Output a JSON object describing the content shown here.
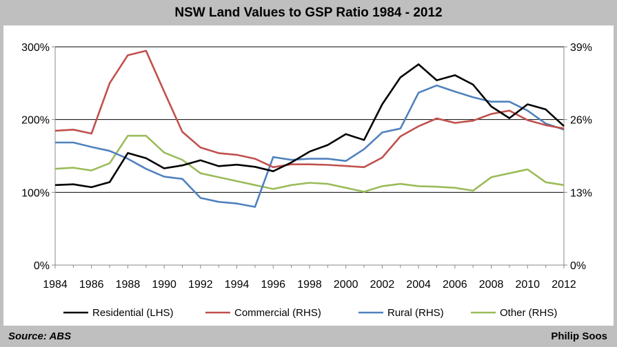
{
  "header": {
    "title": "NSW Land Values to GSP Ratio 1984 - 2012"
  },
  "footer": {
    "source": "Source: ABS",
    "author": "Philip Soos"
  },
  "chart_data": {
    "type": "line",
    "title": "NSW Land Values to GSP Ratio 1984 - 2012",
    "xlabel": "",
    "ylabel": "",
    "xlim": [
      1984,
      2012
    ],
    "ylim_left": [
      0,
      300
    ],
    "ylim_right": [
      0,
      39
    ],
    "x_ticks": [
      "1984",
      "1986",
      "1988",
      "1990",
      "1992",
      "1994",
      "1996",
      "1998",
      "2000",
      "2002",
      "2004",
      "2006",
      "2008",
      "2010",
      "2012"
    ],
    "y_left_ticks": [
      "0%",
      "100%",
      "200%",
      "300%"
    ],
    "y_right_ticks": [
      "0%",
      "13%",
      "26%",
      "39%"
    ],
    "grid": "horizontal",
    "legend_position": "bottom",
    "x": [
      1984,
      1985,
      1986,
      1987,
      1988,
      1989,
      1990,
      1991,
      1992,
      1993,
      1994,
      1995,
      1996,
      1997,
      1998,
      1999,
      2000,
      2001,
      2002,
      2003,
      2004,
      2005,
      2006,
      2007,
      2008,
      2009,
      2010,
      2011,
      2012
    ],
    "series": [
      {
        "name": "Residential (LHS)",
        "axis": "left",
        "color": "#000000",
        "values": [
          110,
          111,
          107,
          114,
          154,
          147,
          133,
          137,
          144,
          136,
          138,
          135,
          129,
          141,
          156,
          165,
          180,
          172,
          221,
          258,
          276,
          254,
          261,
          248,
          218,
          202,
          221,
          214,
          191
        ]
      },
      {
        "name": "Commercial (RHS)",
        "axis": "right",
        "color": "#c0504d",
        "values": [
          24.0,
          24.2,
          23.5,
          32.5,
          37.5,
          38.3,
          31.0,
          23.8,
          21.0,
          20.0,
          19.7,
          19.0,
          17.5,
          18.0,
          18.0,
          17.9,
          17.7,
          17.5,
          19.2,
          23.0,
          24.8,
          26.2,
          25.4,
          25.8,
          27.0,
          27.6,
          25.9,
          25.0,
          24.4
        ]
      },
      {
        "name": "Rural (RHS)",
        "axis": "right",
        "color": "#4f81bd",
        "values": [
          21.9,
          21.9,
          21.1,
          20.4,
          19.0,
          17.2,
          15.8,
          15.4,
          12.0,
          11.3,
          11.0,
          10.4,
          19.3,
          18.8,
          19.0,
          19.0,
          18.6,
          20.7,
          23.7,
          24.4,
          30.8,
          32.1,
          31.0,
          30.0,
          29.2,
          29.2,
          27.6,
          25.3,
          24.2
        ]
      },
      {
        "name": "Other (RHS)",
        "axis": "right",
        "color": "#9bbb59",
        "values": [
          17.2,
          17.4,
          16.9,
          18.2,
          23.1,
          23.1,
          20.1,
          18.8,
          16.4,
          15.7,
          15.0,
          14.3,
          13.6,
          14.3,
          14.7,
          14.5,
          13.8,
          13.1,
          14.1,
          14.5,
          14.1,
          14.0,
          13.8,
          13.3,
          15.7,
          16.4,
          17.1,
          14.8,
          14.3
        ]
      }
    ]
  }
}
